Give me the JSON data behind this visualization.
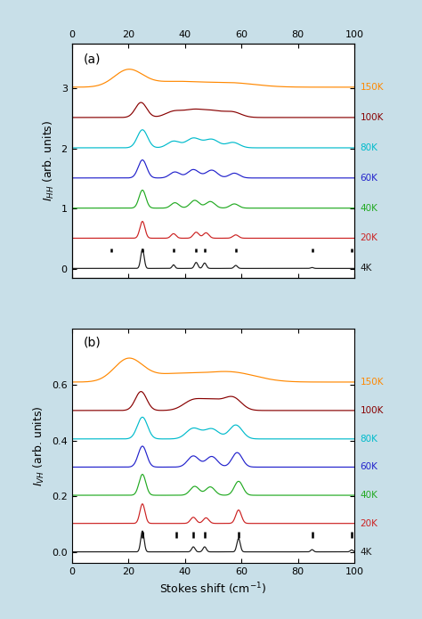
{
  "x_range": [
    0,
    100
  ],
  "x_ticks": [
    0,
    20,
    40,
    60,
    80,
    100
  ],
  "temperatures": [
    "4K",
    "20K",
    "40K",
    "60K",
    "80K",
    "100K",
    "150K"
  ],
  "colors": [
    "#1a1a1a",
    "#cc2222",
    "#22aa22",
    "#2222cc",
    "#00bbcc",
    "#880000",
    "#ff8800"
  ],
  "panel_a": {
    "ylabel": "$I_{HH}$ (arb. units)",
    "ylim": [
      -0.15,
      3.75
    ],
    "yticks": [
      0,
      1,
      2,
      3
    ],
    "offsets": [
      0.0,
      0.5,
      1.0,
      1.5,
      2.0,
      2.5,
      3.0
    ],
    "label": "(a)",
    "tick_marks_4K": [
      14,
      25,
      36,
      44,
      47,
      58,
      85,
      99
    ],
    "tick_y_low": 0.27,
    "tick_y_high": 0.34
  },
  "panel_b": {
    "ylabel": "$I_{VH}$ (arb. units)",
    "ylim": [
      -0.04,
      0.8
    ],
    "yticks": [
      0.0,
      0.2,
      0.4,
      0.6
    ],
    "offsets": [
      0.0,
      0.1,
      0.2,
      0.3,
      0.4,
      0.5,
      0.6
    ],
    "label": "(b)",
    "tick_marks_4K": [
      25,
      37,
      43,
      47,
      59,
      85,
      99
    ],
    "tick_y_low": 0.052,
    "tick_y_high": 0.072
  },
  "xlabel": "Stokes shift (cm$^{-1}$)",
  "fig_width": 4.74,
  "fig_height": 6.95,
  "background_color": "#c8dfe8"
}
